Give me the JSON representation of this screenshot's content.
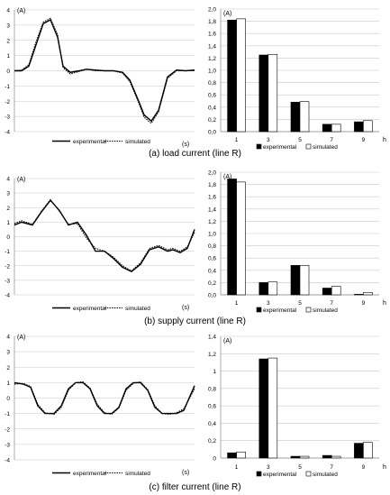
{
  "captions": [
    "(a) load current (line R)",
    "(b) supply current (line R)",
    "(c) filter current (line R)"
  ],
  "chart_data": [
    {
      "type": "line",
      "id": "a-wave",
      "ylabel": "(A)",
      "xlabel": "(s)",
      "ylim": [
        -4,
        4
      ],
      "yticks": [
        "4",
        "3",
        "2",
        "1",
        "0",
        "-1",
        "-2",
        "-3",
        "-4"
      ],
      "grid": true,
      "legend": "bottom",
      "series": [
        {
          "name": "experimental",
          "style": "solid",
          "x": [
            0,
            0.04,
            0.08,
            0.12,
            0.16,
            0.2,
            0.24,
            0.27,
            0.31,
            0.36,
            0.4,
            0.45,
            0.5,
            0.55,
            0.6,
            0.64,
            0.69,
            0.72,
            0.76,
            0.8,
            0.85,
            0.9,
            0.95,
            1
          ],
          "y": [
            0,
            0,
            0.3,
            1.7,
            3.1,
            3.35,
            2.2,
            0.3,
            -0.1,
            0,
            0.1,
            0.05,
            0,
            0,
            -0.1,
            -0.6,
            -2,
            -2.9,
            -3.3,
            -2.6,
            -0.4,
            0.05,
            0,
            0.05
          ]
        },
        {
          "name": "simulated",
          "style": "dotted",
          "x": [
            0,
            0.04,
            0.08,
            0.12,
            0.16,
            0.2,
            0.24,
            0.27,
            0.31,
            0.36,
            0.4,
            0.45,
            0.5,
            0.55,
            0.6,
            0.64,
            0.69,
            0.72,
            0.76,
            0.8,
            0.85,
            0.9,
            0.95,
            1
          ],
          "y": [
            0,
            0.05,
            0.4,
            1.9,
            3.2,
            3.45,
            2.35,
            0.2,
            -0.2,
            -0.05,
            0.1,
            0,
            0,
            0,
            -0.15,
            -0.7,
            -2.1,
            -3.05,
            -3.45,
            -2.7,
            -0.5,
            0,
            0,
            0
          ]
        }
      ]
    },
    {
      "type": "bar",
      "id": "a-harm",
      "ylabel": "(A)",
      "xlabel": "h",
      "categories": [
        "1",
        "3",
        "5",
        "7",
        "9"
      ],
      "ylim": [
        0,
        2
      ],
      "yticks": [
        "0,0",
        "0,2",
        "0,4",
        "0,6",
        "0,8",
        "1,0",
        "1,2",
        "1,4",
        "1,6",
        "1,8",
        "2,0"
      ],
      "legend": "bottom",
      "series": [
        {
          "name": "experimental",
          "color": "#000000",
          "values": [
            1.82,
            1.25,
            0.48,
            0.12,
            0.16
          ]
        },
        {
          "name": "simulated",
          "color": "#ffffff",
          "values": [
            1.84,
            1.26,
            0.49,
            0.12,
            0.18
          ]
        }
      ]
    },
    {
      "type": "line",
      "id": "b-wave",
      "ylabel": "(A)",
      "xlabel": "(s)",
      "ylim": [
        -4,
        4
      ],
      "yticks": [
        "4",
        "3",
        "2",
        "1",
        "0",
        "-1",
        "-2",
        "-3",
        "-4"
      ],
      "grid": true,
      "legend": "bottom",
      "series": [
        {
          "name": "experimental",
          "style": "solid",
          "x": [
            0,
            0.04,
            0.1,
            0.15,
            0.2,
            0.25,
            0.3,
            0.35,
            0.4,
            0.45,
            0.5,
            0.55,
            0.6,
            0.65,
            0.7,
            0.75,
            0.8,
            0.85,
            0.88,
            0.92,
            0.96,
            1
          ],
          "y": [
            0.8,
            1,
            0.8,
            1.7,
            2.5,
            1.8,
            0.8,
            1,
            0.1,
            -1,
            -1,
            -1.5,
            -2.1,
            -2.4,
            -1.9,
            -0.9,
            -0.7,
            -1,
            -0.9,
            -1.1,
            -0.8,
            0.5
          ]
        },
        {
          "name": "simulated",
          "style": "dotted",
          "x": [
            0,
            0.04,
            0.1,
            0.15,
            0.2,
            0.25,
            0.3,
            0.35,
            0.4,
            0.45,
            0.5,
            0.55,
            0.6,
            0.65,
            0.7,
            0.75,
            0.8,
            0.85,
            0.88,
            0.92,
            0.96,
            1
          ],
          "y": [
            0.9,
            1.1,
            0.85,
            1.75,
            2.55,
            1.75,
            0.85,
            0.9,
            -0.1,
            -0.8,
            -1,
            -1.4,
            -2,
            -2.35,
            -1.8,
            -0.8,
            -0.6,
            -0.9,
            -0.8,
            -1,
            -0.7,
            0.3
          ]
        }
      ]
    },
    {
      "type": "bar",
      "id": "b-harm",
      "ylabel": "(A)",
      "xlabel": "h",
      "categories": [
        "1",
        "3",
        "5",
        "7",
        "9"
      ],
      "ylim": [
        0,
        2
      ],
      "yticks": [
        "0,0",
        "0,2",
        "0,4",
        "0,6",
        "0,8",
        "1,0",
        "1,2",
        "1,4",
        "1,6",
        "1,8",
        "2,0"
      ],
      "legend": "bottom",
      "series": [
        {
          "name": "experimental",
          "color": "#000000",
          "values": [
            1.89,
            0.2,
            0.48,
            0.11,
            0.0
          ]
        },
        {
          "name": "simulated",
          "color": "#ffffff",
          "values": [
            1.84,
            0.21,
            0.48,
            0.14,
            0.04
          ]
        }
      ]
    },
    {
      "type": "line",
      "id": "c-wave",
      "ylabel": "(A)",
      "xlabel": "(s)",
      "ylim": [
        -4,
        4
      ],
      "yticks": [
        "4",
        "3",
        "2",
        "1",
        "0",
        "-1",
        "-2",
        "-3",
        "-4"
      ],
      "grid": true,
      "legend": "bottom",
      "series": [
        {
          "name": "experimental",
          "style": "solid",
          "x": [
            0,
            0.05,
            0.09,
            0.13,
            0.17,
            0.22,
            0.26,
            0.3,
            0.34,
            0.38,
            0.42,
            0.46,
            0.5,
            0.54,
            0.58,
            0.62,
            0.66,
            0.7,
            0.74,
            0.78,
            0.82,
            0.86,
            0.9,
            0.94,
            1
          ],
          "y": [
            1,
            0.9,
            0.7,
            -0.5,
            -1,
            -1,
            -0.5,
            0.6,
            1,
            1,
            0.6,
            -0.5,
            -1,
            -1,
            -0.6,
            0.6,
            1,
            1,
            0.5,
            -0.6,
            -1,
            -1,
            -1,
            -0.8,
            0.8
          ]
        },
        {
          "name": "simulated",
          "style": "dotted",
          "x": [
            0,
            0.05,
            0.09,
            0.13,
            0.17,
            0.22,
            0.26,
            0.3,
            0.34,
            0.38,
            0.42,
            0.46,
            0.5,
            0.54,
            0.58,
            0.62,
            0.66,
            0.7,
            0.74,
            0.78,
            0.82,
            0.86,
            0.9,
            0.94,
            1
          ],
          "y": [
            0.9,
            0.95,
            0.75,
            -0.4,
            -0.95,
            -1.05,
            -0.6,
            0.5,
            1,
            1.05,
            0.65,
            -0.4,
            -0.95,
            -1.05,
            -0.65,
            0.5,
            0.95,
            1.05,
            0.55,
            -0.5,
            -1,
            -1.05,
            -0.95,
            -0.7,
            0.6
          ]
        }
      ]
    },
    {
      "type": "bar",
      "id": "c-harm",
      "ylabel": "(A)",
      "xlabel": "h",
      "categories": [
        "1",
        "3",
        "5",
        "7",
        "9"
      ],
      "ylim": [
        0,
        1.4
      ],
      "yticks": [
        "0",
        "0,2",
        "0,4",
        "0,6",
        "0,8",
        "1",
        "1,2",
        "1,4"
      ],
      "legend": "bottom",
      "series": [
        {
          "name": "experimental",
          "color": "#000000",
          "values": [
            0.06,
            1.14,
            0.02,
            0.03,
            0.17
          ]
        },
        {
          "name": "simulated",
          "color": "#ffffff",
          "values": [
            0.07,
            1.15,
            0.02,
            0.02,
            0.18
          ]
        }
      ]
    }
  ]
}
